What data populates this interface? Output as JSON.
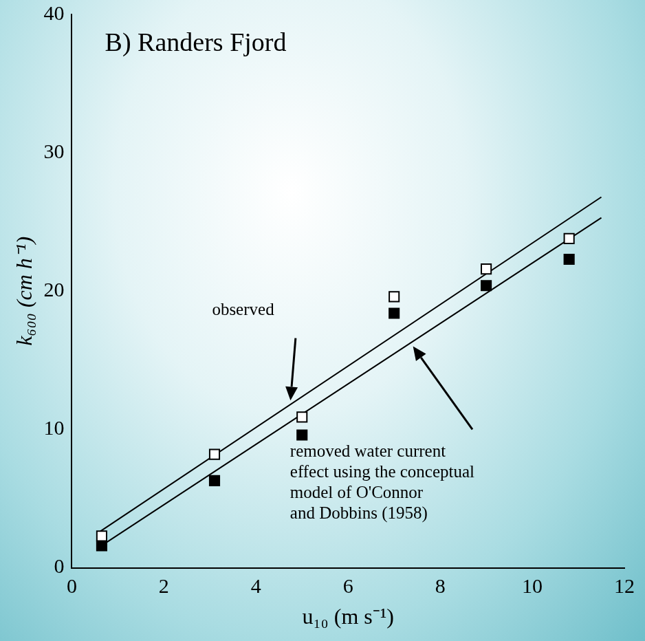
{
  "chart_data": {
    "type": "scatter",
    "title": "B) Randers Fjord",
    "x_label": "u₁₀ (m s⁻¹)",
    "y_label": "k₆₀₀ (cm h⁻¹)",
    "xlim": [
      0,
      12
    ],
    "xticks": [
      0,
      2,
      4,
      6,
      8,
      10,
      12
    ],
    "ylim": [
      0,
      40
    ],
    "yticks": [
      0,
      10,
      20,
      30,
      40
    ],
    "grid": false,
    "series": [
      {
        "type": "scatter",
        "marker": "square-open",
        "color": "#000000",
        "x": [
          0.65,
          3.1,
          5.0,
          7.0,
          9.0,
          10.8
        ],
        "values": [
          2.3,
          8.2,
          10.9,
          19.6,
          21.6,
          23.8
        ]
      },
      {
        "type": "scatter",
        "marker": "square",
        "color": "#000000",
        "x": [
          0.65,
          3.1,
          5.0,
          7.0,
          9.0,
          10.8
        ],
        "values": [
          1.6,
          6.3,
          9.6,
          18.4,
          20.4,
          22.3
        ]
      },
      {
        "type": "line",
        "line_style": "solid",
        "color": "#000000",
        "x": [
          0.6,
          11.5
        ],
        "values": [
          2.6,
          26.8
        ]
      },
      {
        "type": "line",
        "line_style": "solid",
        "color": "#000000",
        "x": [
          0.6,
          11.5
        ],
        "values": [
          1.5,
          25.3
        ]
      }
    ],
    "annotations": [
      {
        "text": [
          "observed"
        ]
      },
      {
        "text": [
          "removed water current",
          "effect using the conceptual",
          "model of O'Connor",
          "and Dobbins (1958)"
        ]
      }
    ]
  }
}
